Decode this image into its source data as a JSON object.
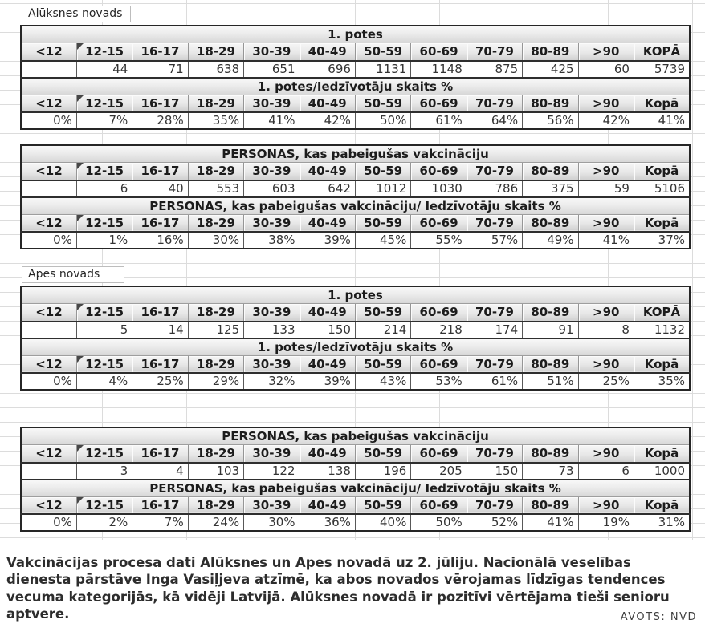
{
  "colors": {
    "table_border": "#262626",
    "header_gradient_top": "#f5f5f5",
    "header_gradient_bottom": "#cfcfcf",
    "grid_line": "#dcdcdc",
    "text": "#2d2d2d"
  },
  "tables": {
    "age_headers": [
      "<12",
      "12-15",
      "16-17",
      "18-29",
      "30-39",
      "40-49",
      "50-59",
      "60-69",
      "70-79",
      "80-89",
      ">90"
    ]
  },
  "sections": [
    {
      "region_label": "Alūksnes novads",
      "blocks": [
        {
          "subtables": [
            {
              "title": "1. potes",
              "total_header": "KOPĀ",
              "values": [
                "",
                "44",
                "71",
                "638",
                "651",
                "696",
                "1131",
                "1148",
                "875",
                "425",
                "60",
                "5739"
              ]
            },
            {
              "title": "1. potes/Iedzīvotāju skaits %",
              "total_header": "Kopā",
              "values": [
                "0%",
                "7%",
                "28%",
                "35%",
                "41%",
                "42%",
                "50%",
                "61%",
                "64%",
                "56%",
                "42%",
                "41%"
              ]
            }
          ]
        },
        {
          "subtables": [
            {
              "title": "PERSONAS, kas pabeigušas vakcināciju",
              "total_header": "Kopā",
              "values": [
                "",
                "6",
                "40",
                "553",
                "603",
                "642",
                "1012",
                "1030",
                "786",
                "375",
                "59",
                "5106"
              ]
            },
            {
              "title": "PERSONAS, kas pabeigušas vakcināciju/ Iedzīvotāju skaits %",
              "total_header": "Kopā",
              "values": [
                "0%",
                "1%",
                "16%",
                "30%",
                "38%",
                "39%",
                "45%",
                "55%",
                "57%",
                "49%",
                "41%",
                "37%"
              ]
            }
          ]
        }
      ]
    },
    {
      "region_label": "Apes novads",
      "blocks": [
        {
          "subtables": [
            {
              "title": "1. potes",
              "total_header": "KOPĀ",
              "values": [
                "",
                "5",
                "14",
                "125",
                "133",
                "150",
                "214",
                "218",
                "174",
                "91",
                "8",
                "1132"
              ]
            },
            {
              "title": "1. potes/Iedzīvotāju skaits %",
              "total_header": "Kopā",
              "values": [
                "0%",
                "4%",
                "25%",
                "29%",
                "32%",
                "39%",
                "43%",
                "53%",
                "61%",
                "51%",
                "25%",
                "35%"
              ]
            }
          ]
        },
        {
          "subtables": [
            {
              "title": "PERSONAS, kas pabeigušas vakcināciju",
              "total_header": "Kopā",
              "values": [
                "",
                "3",
                "4",
                "103",
                "122",
                "138",
                "196",
                "205",
                "150",
                "73",
                "6",
                "1000"
              ]
            },
            {
              "title": "PERSONAS, kas pabeigušas vakcināciju/ Iedzīvotāju skaits %",
              "total_header": "Kopā",
              "values": [
                "0%",
                "2%",
                "7%",
                "24%",
                "30%",
                "36%",
                "40%",
                "50%",
                "52%",
                "41%",
                "19%",
                "31%"
              ]
            }
          ]
        }
      ]
    }
  ],
  "footer": {
    "caption": "Vakcinācijas procesa dati Alūksnes un Apes novadā uz 2. jūliju. Nacionālā veselības dienesta pārstāve Inga Vasiļjeva atzīmē, ka abos novados vērojamas līdzīgas tendences vecuma kategorijās, kā vidēji Latvijā. Alūksnes novadā ir pozitīvi vērtējama tieši senioru aptvere.",
    "source": "AVOTS: NVD"
  },
  "chart_data": [
    {
      "type": "table",
      "title": "Alūksnes novads",
      "categories": [
        "<12",
        "12-15",
        "16-17",
        "18-29",
        "30-39",
        "40-49",
        "50-59",
        "60-69",
        "70-79",
        "80-89",
        ">90",
        "KOPĀ"
      ],
      "series": [
        {
          "name": "1. potes",
          "values": [
            null,
            44,
            71,
            638,
            651,
            696,
            1131,
            1148,
            875,
            425,
            60,
            5739
          ]
        },
        {
          "name": "1. potes/Iedzīvotāju skaits %",
          "values": [
            0,
            7,
            28,
            35,
            41,
            42,
            50,
            61,
            64,
            56,
            42,
            41
          ]
        },
        {
          "name": "PERSONAS, kas pabeigušas vakcināciju",
          "values": [
            null,
            6,
            40,
            553,
            603,
            642,
            1012,
            1030,
            786,
            375,
            59,
            5106
          ]
        },
        {
          "name": "PERSONAS, kas pabeigušas vakcināciju/ Iedzīvotāju skaits %",
          "values": [
            0,
            1,
            16,
            30,
            38,
            39,
            45,
            55,
            57,
            49,
            41,
            37
          ]
        }
      ]
    },
    {
      "type": "table",
      "title": "Apes novads",
      "categories": [
        "<12",
        "12-15",
        "16-17",
        "18-29",
        "30-39",
        "40-49",
        "50-59",
        "60-69",
        "70-79",
        "80-89",
        ">90",
        "KOPĀ"
      ],
      "series": [
        {
          "name": "1. potes",
          "values": [
            null,
            5,
            14,
            125,
            133,
            150,
            214,
            218,
            174,
            91,
            8,
            1132
          ]
        },
        {
          "name": "1. potes/Iedzīvotāju skaits %",
          "values": [
            0,
            4,
            25,
            29,
            32,
            39,
            43,
            53,
            61,
            51,
            25,
            35
          ]
        },
        {
          "name": "PERSONAS, kas pabeigušas vakcināciju",
          "values": [
            null,
            3,
            4,
            103,
            122,
            138,
            196,
            205,
            150,
            73,
            6,
            1000
          ]
        },
        {
          "name": "PERSONAS, kas pabeigušas vakcināciju/ Iedzīvotāju skaits %",
          "values": [
            0,
            2,
            7,
            24,
            30,
            36,
            40,
            50,
            52,
            41,
            19,
            31
          ]
        }
      ]
    }
  ]
}
